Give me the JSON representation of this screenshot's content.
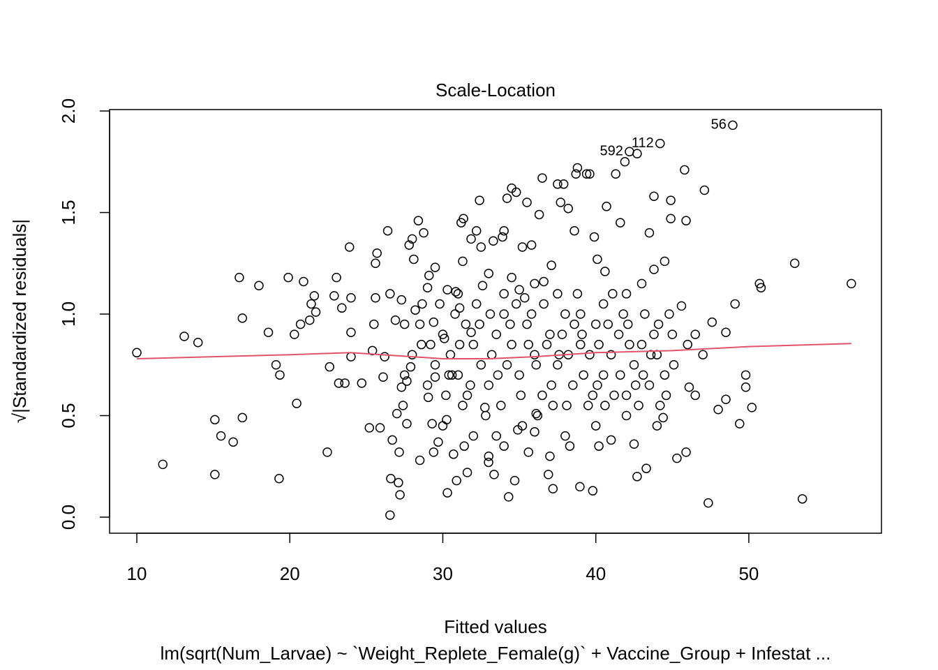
{
  "chart_data": {
    "type": "scatter",
    "title": "Scale-Location",
    "x_label": "Fitted values",
    "y_label": "√|Standardized residuals|",
    "subtitle": "lm(sqrt(Num_Larvae) ~ `Weight_Replete_Female(g)` + Vaccine_Group + Infestat ...",
    "xlim": [
      8.22,
      58.67
    ],
    "ylim": [
      -0.079,
      2.007
    ],
    "xticks": [
      10,
      20,
      30,
      40,
      50
    ],
    "yticks": [
      {
        "value": 0,
        "label": "0.0"
      },
      0.5,
      {
        "value": 1,
        "label": "1.0"
      },
      1.5,
      {
        "value": 2,
        "label": "2.0"
      }
    ],
    "color": "#000000",
    "x": [
      10.0,
      11.7,
      13.1,
      14.0,
      15.1,
      15.1,
      15.5,
      16.3,
      16.7,
      16.9,
      16.9,
      17.98,
      18.6,
      19.1,
      19.35,
      19.3,
      19.9,
      20.3,
      20.45,
      20.7,
      20.9,
      21.4,
      21.6,
      21.3,
      21.7,
      22.45,
      22.6,
      22.9,
      23.05,
      23.4,
      23.2,
      23.6,
      23.9,
      24.0,
      24.0,
      24.0,
      24.7,
      25.2,
      25.4,
      25.5,
      25.6,
      25.7,
      25.6,
      25.9,
      26.1,
      26.2,
      26.4,
      26.55,
      26.55,
      26.6,
      26.7,
      26.9,
      27.0,
      27.1,
      27.2,
      27.15,
      27.3,
      27.3,
      27.4,
      27.5,
      27.65,
      27.65,
      27.8,
      27.9,
      28.0,
      28.1,
      28.2,
      28.4,
      28.5,
      28.6,
      28.75,
      28.65,
      29.0,
      29.05,
      29.1,
      29.3,
      29.4,
      29.5,
      29.4,
      29.5,
      29.7,
      30.1,
      30.3,
      30.25,
      30.3,
      30.6,
      30.7,
      30.9,
      30.85,
      31.1,
      31.2,
      31.35,
      31.3,
      31.4,
      31.6,
      31.85,
      31.85,
      32.2,
      32.4,
      32.5,
      32.6,
      32.75,
      32.99,
      33.3,
      33.35,
      33.5,
      33.9,
      34.0,
      34.2,
      34.3,
      34.5,
      34.5,
      34.7,
      34.8,
      34.9,
      35.2,
      35.35,
      35.5,
      35.6,
      35.8,
      36.1,
      36.3,
      36.5,
      36.6,
      36.9,
      37.1,
      37.2,
      37.5,
      37.7,
      37.9,
      38.2,
      38.3,
      38.6,
      38.7,
      38.8,
      38.96,
      39.4,
      39.6,
      39.8,
      39.9,
      40.1,
      40.2,
      40.6,
      40.7,
      41.3,
      41.6,
      41.9,
      42.2,
      42.5,
      42.7,
      42.7,
      43.3,
      43.5,
      43.8,
      43.8,
      44.2,
      44.4,
      44.5,
      44.9,
      44.9,
      45.3,
      45.6,
      45.8,
      45.9,
      45.9,
      46.1,
      46.5,
      47.1,
      47.35,
      47.6,
      48.0,
      48.5,
      48.5,
      48.95,
      49.1,
      49.4,
      49.8,
      49.8,
      50.2,
      50.7,
      50.8,
      53.0,
      53.5,
      56.7,
      30,
      30.5,
      31,
      31.5,
      32,
      32.5,
      33,
      33.5,
      34,
      34.5,
      35,
      35.5,
      36,
      36.5,
      37,
      37.5,
      38,
      38.5,
      39,
      39.5,
      40,
      40.5,
      41,
      41.5,
      42,
      42.5,
      43,
      43.5,
      44,
      44.5,
      45,
      30.2,
      30.8,
      31.3,
      31.8,
      32.2,
      32.8,
      33.2,
      33.8,
      34.2,
      34.8,
      35.2,
      35.8,
      36.2,
      36.8,
      37.2,
      37.8,
      38.2,
      38.8,
      39.2,
      39.8,
      40.2,
      40.8,
      41.2,
      41.8,
      42.2,
      42.8,
      43.2,
      43.8,
      44.2,
      44.8,
      29.5,
      29.8,
      30.4,
      31.1,
      31.6,
      32.4,
      33.1,
      33.6,
      34.4,
      35.1,
      35.6,
      36.1,
      36.6,
      37.1,
      37.6,
      38.1,
      38.6,
      39.1,
      39.6,
      40.1,
      40.6,
      41.1,
      41.6,
      42.1,
      42.6,
      43.1,
      43.6,
      44.1,
      44.6,
      45.1,
      46,
      46.5,
      47,
      33,
      34,
      36,
      37.5,
      39,
      40.5,
      42,
      43,
      35,
      31,
      30,
      32,
      34,
      36,
      38,
      40,
      42,
      44,
      33,
      37,
      41,
      28,
      28.5,
      27.5,
      29,
      29.2
    ],
    "values": [
      0.81,
      0.26,
      0.89,
      0.86,
      0.48,
      0.21,
      0.4,
      0.37,
      1.18,
      0.98,
      0.49,
      1.14,
      0.91,
      0.75,
      0.7,
      0.19,
      1.18,
      0.9,
      0.56,
      0.95,
      1.16,
      1.05,
      1.09,
      0.97,
      1.01,
      0.32,
      0.74,
      1.09,
      1.18,
      1.03,
      0.66,
      0.66,
      1.33,
      0.79,
      0.91,
      1.08,
      0.66,
      0.44,
      0.82,
      0.95,
      1.25,
      1.3,
      1.08,
      0.44,
      0.69,
      0.79,
      1.41,
      1.1,
      0.01,
      0.19,
      0.38,
      0.97,
      0.51,
      0.17,
      0.11,
      0.32,
      1.07,
      0.64,
      0.55,
      0.95,
      0.67,
      0.46,
      1.34,
      0.74,
      1.37,
      1.27,
      1.02,
      1.46,
      0.28,
      0.85,
      1.4,
      1.05,
      1.13,
      0.59,
      1.19,
      0.46,
      0.32,
      1.23,
      0.96,
      0.69,
      0.37,
      0.88,
      1.12,
      0.48,
      0.12,
      0.7,
      0.31,
      0.18,
      1.11,
      1.03,
      1.45,
      1.47,
      1.26,
      0.35,
      0.22,
      1.37,
      0.91,
      1.41,
      1.56,
      1.33,
      1.14,
      0.54,
      0.27,
      1.36,
      0.21,
      0.4,
      1.38,
      1.41,
      1.57,
      0.1,
      1.62,
      1.18,
      0.18,
      1.6,
      0.43,
      1.33,
      1.08,
      1.55,
      0.32,
      1.34,
      0.51,
      1.49,
      1.67,
      1.16,
      0.21,
      1.24,
      0.14,
      1.64,
      1.55,
      1.64,
      1.52,
      0.35,
      1.41,
      1.69,
      1.72,
      0.15,
      1.69,
      1.69,
      0.13,
      1.38,
      1.27,
      0.35,
      1.21,
      1.53,
      1.69,
      1.45,
      1.75,
      1.8,
      0.36,
      1.79,
      0.2,
      0.24,
      1.4,
      1.58,
      1.22,
      1.84,
      0.49,
      1.26,
      1.56,
      1.47,
      0.29,
      1.04,
      1.71,
      1.46,
      0.32,
      0.64,
      0.6,
      1.61,
      0.07,
      0.96,
      0.53,
      0.58,
      0.91,
      1.93,
      1.05,
      0.46,
      0.7,
      0.64,
      0.54,
      1.15,
      1.13,
      1.25,
      0.09,
      1.15,
      0.9,
      0.8,
      0.7,
      0.95,
      0.85,
      0.75,
      0.65,
      0.9,
      1.0,
      0.85,
      0.7,
      0.95,
      0.8,
      0.6,
      0.9,
      0.75,
      1.0,
      0.65,
      0.85,
      0.55,
      0.95,
      0.7,
      0.8,
      0.9,
      0.6,
      0.75,
      0.85,
      0.65,
      0.8,
      0.7,
      0.9,
      0.6,
      1.0,
      0.55,
      0.65,
      1.05,
      0.5,
      0.8,
      0.55,
      0.75,
      1.05,
      0.45,
      1.0,
      0.5,
      0.85,
      0.55,
      0.9,
      0.8,
      1.1,
      0.7,
      0.6,
      0.85,
      0.95,
      0.6,
      1.0,
      0.85,
      0.55,
      1.0,
      0.9,
      0.55,
      1.0,
      0.75,
      1.05,
      0.7,
      0.85,
      0.6,
      0.95,
      1.0,
      0.7,
      0.95,
      0.6,
      0.85,
      0.75,
      1.05,
      0.65,
      0.8,
      0.55,
      0.95,
      0.9,
      0.8,
      0.65,
      0.55,
      1.1,
      0.7,
      0.95,
      0.65,
      0.7,
      0.8,
      0.95,
      0.6,
      0.75,
      0.85,
      0.9,
      0.8,
      1.2,
      1.1,
      1.15,
      1.1,
      1.0,
      1.05,
      1.1,
      1.15,
      1.12,
      1.1,
      0.45,
      0.4,
      0.35,
      0.42,
      0.4,
      0.45,
      0.5,
      0.45,
      0.3,
      0.3,
      0.38,
      0.8,
      0.95,
      0.7,
      0.65,
      0.85
    ],
    "smooth": {
      "color": "#DF536B",
      "x": [
        10,
        15,
        20,
        24,
        26,
        30,
        33,
        36,
        40,
        45,
        50,
        56.7
      ],
      "values": [
        0.78,
        0.79,
        0.8,
        0.81,
        0.8,
        0.78,
        0.78,
        0.79,
        0.81,
        0.82,
        0.84,
        0.855
      ]
    },
    "annotations": [
      {
        "text": "56",
        "x": 48.95,
        "y": 1.93
      },
      {
        "text": "112",
        "x": 44.2,
        "y": 1.84
      },
      {
        "text": "592",
        "x": 42.2,
        "y": 1.8
      }
    ]
  }
}
